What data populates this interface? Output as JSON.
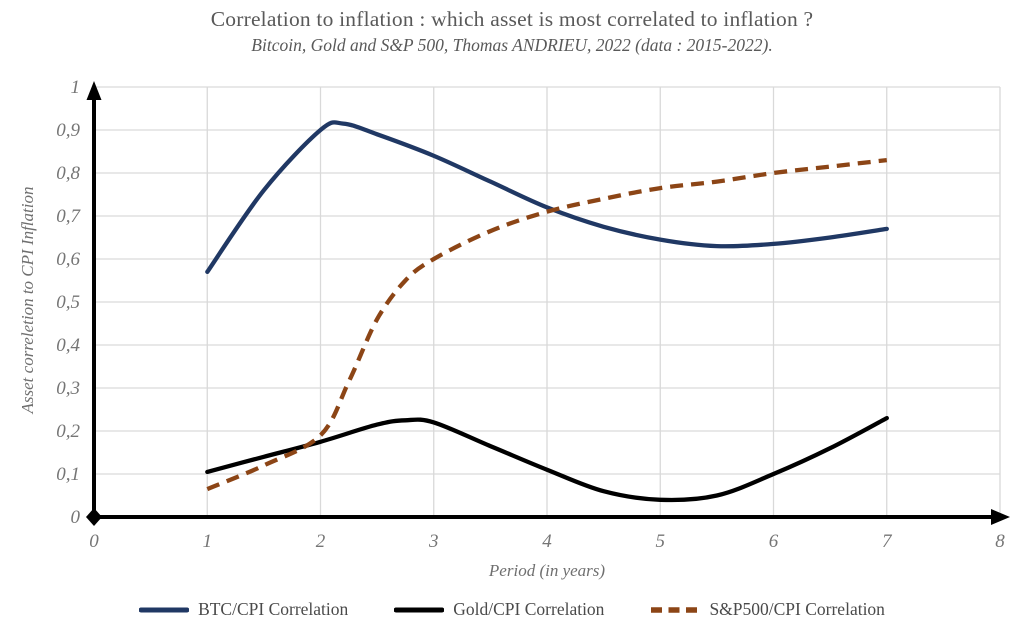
{
  "chart_data": {
    "type": "line",
    "title": "Correlation to inflation : which asset is most correlated to inflation ?",
    "subtitle": "Bitcoin, Gold and S&P 500, Thomas ANDRIEU, 2022 (data : 2015-2022).",
    "xlabel": "Period (in years)",
    "ylabel": "Asset correletion to CPI Inflation",
    "xlim": [
      0,
      8
    ],
    "ylim": [
      0,
      1
    ],
    "x_ticks": [
      "0",
      "1",
      "2",
      "3",
      "4",
      "5",
      "6",
      "7",
      "8"
    ],
    "y_ticks": [
      "0",
      "0,1",
      "0,2",
      "0,3",
      "0,4",
      "0,5",
      "0,6",
      "0,7",
      "0,8",
      "0,9",
      "1"
    ],
    "grid": true,
    "legend_position": "bottom",
    "colors": {
      "grid": "#d9d9d9",
      "axis": "#000000",
      "tick_text": "#757575",
      "title_text": "#595959"
    },
    "series": [
      {
        "name": "BTC/CPI Correlation",
        "color": "#203864",
        "line_style": "solid",
        "x": [
          1,
          1.5,
          2,
          2.2,
          2.5,
          3,
          3.5,
          4,
          4.5,
          5,
          5.5,
          6,
          6.5,
          7
        ],
        "y": [
          0.57,
          0.76,
          0.9,
          0.915,
          0.89,
          0.84,
          0.78,
          0.72,
          0.675,
          0.645,
          0.63,
          0.635,
          0.65,
          0.67
        ]
      },
      {
        "name": "Gold/CPI Correlation",
        "color": "#000000",
        "line_style": "solid",
        "x": [
          1,
          1.5,
          2,
          2.5,
          2.75,
          3,
          3.5,
          4,
          4.5,
          5,
          5.5,
          6,
          6.5,
          7
        ],
        "y": [
          0.105,
          0.14,
          0.175,
          0.215,
          0.225,
          0.22,
          0.165,
          0.11,
          0.06,
          0.04,
          0.05,
          0.1,
          0.16,
          0.23
        ]
      },
      {
        "name": "S&P500/CPI Correlation",
        "color": "#8C4516",
        "line_style": "dashed",
        "x": [
          1,
          1.5,
          2,
          2.25,
          2.5,
          2.75,
          3,
          3.5,
          4,
          4.5,
          5,
          5.5,
          6,
          6.5,
          7
        ],
        "y": [
          0.065,
          0.12,
          0.19,
          0.315,
          0.46,
          0.55,
          0.6,
          0.665,
          0.71,
          0.74,
          0.765,
          0.78,
          0.8,
          0.815,
          0.83
        ]
      }
    ]
  }
}
